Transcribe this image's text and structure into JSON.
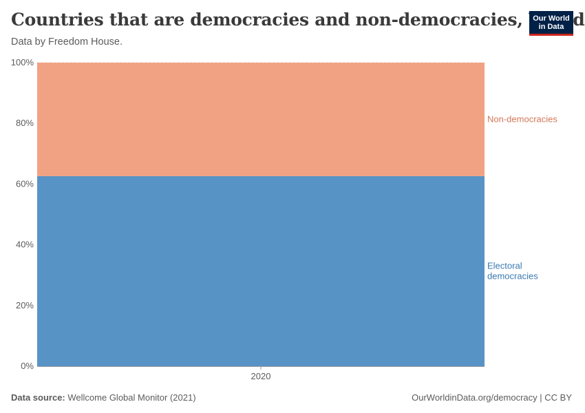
{
  "header": {
    "title": "Countries that are democracies and non-democracies, World",
    "subtitle": "Data by Freedom House."
  },
  "logo": {
    "line1": "Our World",
    "line2": "in Data"
  },
  "footer": {
    "source_label": "Data source:",
    "source_text": "Wellcome Global Monitor (2021)",
    "right_text": "OurWorldinData.org/democracy | CC BY"
  },
  "chart_data": {
    "type": "area",
    "stacked": true,
    "x": [
      2020
    ],
    "xticks": [
      "2020"
    ],
    "ylim": [
      0,
      100
    ],
    "yticks": [
      "0%",
      "20%",
      "40%",
      "60%",
      "80%",
      "100%"
    ],
    "series": [
      {
        "name": "Electoral democracies",
        "values": [
          62.6
        ],
        "color": "#5893c5",
        "label_lines": [
          "Electoral",
          "democracies"
        ]
      },
      {
        "name": "Non-democracies",
        "values": [
          37.4
        ],
        "color": "#f1a283",
        "label_lines": [
          "Non-democracies"
        ]
      }
    ],
    "label_colors": {
      "Electoral democracies": "#3b79b3",
      "Non-democracies": "#d4775a"
    },
    "grid": true
  }
}
